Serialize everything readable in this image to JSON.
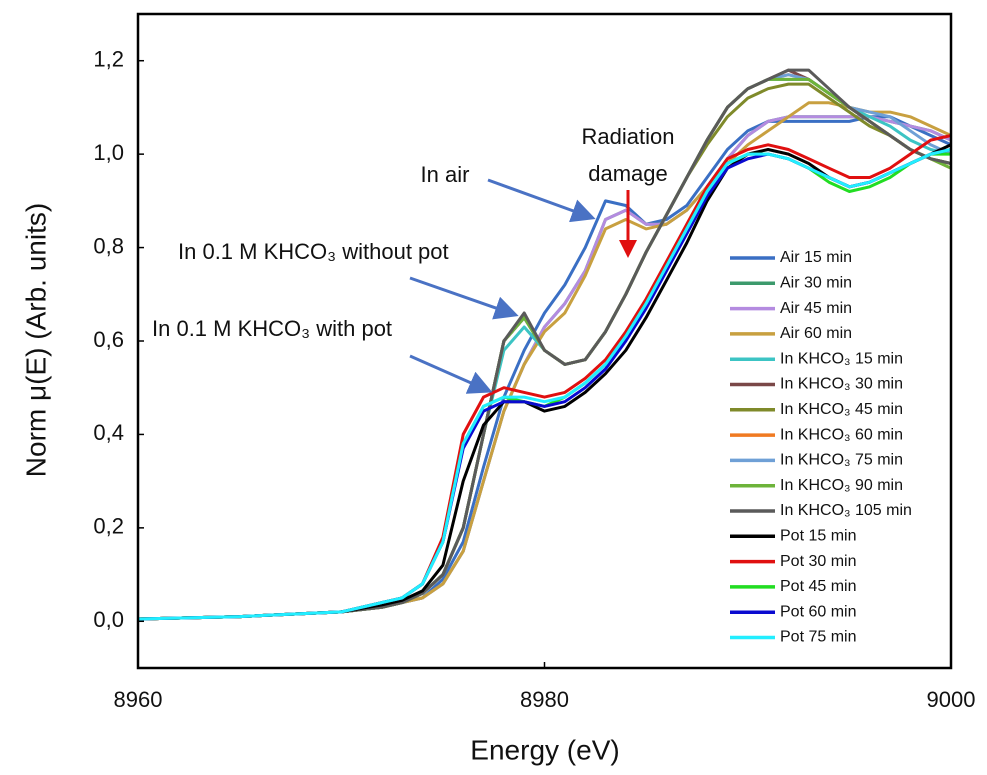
{
  "chart_data": {
    "type": "line",
    "xlabel": "Energy (eV)",
    "ylabel": "Norm μ(E) (Arb. units)",
    "annotations": [
      "In air",
      "Radiation",
      "damage",
      "In 0.1 M KHCO₃ without pot",
      "In 0.1 M KHCO₃ with pot"
    ],
    "xlim": [
      8960,
      9000
    ],
    "xticks": [
      8960,
      8980,
      9000
    ],
    "ylim": [
      -0.1,
      1.3
    ],
    "yticks": [
      {
        "value": 0,
        "label": "0,0"
      },
      {
        "value": 0.2,
        "label": "0,2"
      },
      {
        "value": 0.4,
        "label": "0,4"
      },
      {
        "value": 0.6,
        "label": "0,6"
      },
      {
        "value": 0.8,
        "label": "0,8"
      },
      {
        "value": 1.0,
        "label": "1,0"
      },
      {
        "value": 1.2,
        "label": "1,2"
      }
    ],
    "grid": false,
    "legend": "right",
    "x": [
      8960,
      8965,
      8970,
      8972,
      8973,
      8974,
      8975,
      8976,
      8977,
      8978,
      8979,
      8980,
      8981,
      8982,
      8983,
      8984,
      8985,
      8986,
      8987,
      8988,
      8989,
      8990,
      8991,
      8992,
      8993,
      8994,
      8995,
      8996,
      8997,
      8998,
      8999,
      9000
    ],
    "series": [
      {
        "name": "Air 15 min",
        "color": "#3a6fc4",
        "values": [
          0.005,
          0.01,
          0.02,
          0.03,
          0.04,
          0.05,
          0.09,
          0.17,
          0.33,
          0.48,
          0.58,
          0.66,
          0.72,
          0.8,
          0.9,
          0.89,
          0.85,
          0.86,
          0.89,
          0.95,
          1.01,
          1.05,
          1.07,
          1.07,
          1.07,
          1.07,
          1.07,
          1.08,
          1.08,
          1.06,
          1.04,
          1.02
        ]
      },
      {
        "name": "Air 30 min",
        "color": "#3c9a6c",
        "values": [
          0.005,
          0.01,
          0.02,
          0.03,
          0.04,
          0.05,
          0.08,
          0.15,
          0.3,
          0.45,
          0.55,
          0.63,
          0.68,
          0.75,
          0.86,
          0.88,
          0.85,
          0.85,
          0.88,
          0.93,
          0.99,
          1.04,
          1.07,
          1.08,
          1.08,
          1.08,
          1.08,
          1.08,
          1.07,
          1.06,
          1.05,
          1.03
        ]
      },
      {
        "name": "Air 45 min",
        "color": "#b48be0",
        "values": [
          0.005,
          0.01,
          0.02,
          0.03,
          0.04,
          0.05,
          0.08,
          0.15,
          0.3,
          0.45,
          0.55,
          0.63,
          0.68,
          0.75,
          0.86,
          0.88,
          0.85,
          0.85,
          0.88,
          0.93,
          0.99,
          1.04,
          1.07,
          1.08,
          1.08,
          1.08,
          1.08,
          1.08,
          1.07,
          1.06,
          1.05,
          1.03
        ]
      },
      {
        "name": "Air 60 min",
        "color": "#c8a040",
        "values": [
          0.005,
          0.01,
          0.02,
          0.03,
          0.04,
          0.05,
          0.08,
          0.15,
          0.3,
          0.45,
          0.55,
          0.62,
          0.66,
          0.74,
          0.84,
          0.86,
          0.84,
          0.85,
          0.88,
          0.93,
          0.98,
          1.02,
          1.05,
          1.08,
          1.11,
          1.11,
          1.1,
          1.09,
          1.09,
          1.08,
          1.06,
          1.04
        ]
      },
      {
        "name": "In KHCO₃ 15 min",
        "color": "#3cc4c4",
        "values": [
          0.005,
          0.01,
          0.02,
          0.03,
          0.04,
          0.06,
          0.1,
          0.2,
          0.4,
          0.58,
          0.63,
          0.58,
          0.55,
          0.56,
          0.62,
          0.7,
          0.79,
          0.87,
          0.95,
          1.03,
          1.1,
          1.14,
          1.16,
          1.16,
          1.16,
          1.13,
          1.1,
          1.08,
          1.06,
          1.03,
          1.01,
          1.0
        ]
      },
      {
        "name": "In KHCO₃ 30 min",
        "color": "#7a4848",
        "values": [
          0.005,
          0.01,
          0.02,
          0.03,
          0.04,
          0.06,
          0.1,
          0.2,
          0.4,
          0.6,
          0.65,
          0.58,
          0.55,
          0.56,
          0.62,
          0.7,
          0.79,
          0.87,
          0.95,
          1.03,
          1.1,
          1.14,
          1.16,
          1.18,
          1.16,
          1.13,
          1.1,
          1.07,
          1.04,
          1.01,
          0.99,
          0.98
        ]
      },
      {
        "name": "In KHCO₃ 45 min",
        "color": "#7f8a2a",
        "values": [
          0.005,
          0.01,
          0.02,
          0.03,
          0.04,
          0.06,
          0.1,
          0.2,
          0.4,
          0.6,
          0.65,
          0.58,
          0.55,
          0.56,
          0.62,
          0.7,
          0.79,
          0.87,
          0.95,
          1.02,
          1.08,
          1.12,
          1.14,
          1.15,
          1.15,
          1.12,
          1.09,
          1.06,
          1.04,
          1.01,
          0.99,
          0.98
        ]
      },
      {
        "name": "In KHCO₃ 60 min",
        "color": "#f07a22",
        "values": [
          0.005,
          0.01,
          0.02,
          0.03,
          0.04,
          0.06,
          0.1,
          0.2,
          0.4,
          0.6,
          0.65,
          0.58,
          0.55,
          0.56,
          0.62,
          0.7,
          0.79,
          0.87,
          0.95,
          1.03,
          1.1,
          1.14,
          1.16,
          1.17,
          1.16,
          1.13,
          1.1,
          1.07,
          1.04,
          1.01,
          0.99,
          0.97
        ]
      },
      {
        "name": "In KHCO₃ 75 min",
        "color": "#6fa0d6",
        "values": [
          0.005,
          0.01,
          0.02,
          0.03,
          0.04,
          0.06,
          0.1,
          0.2,
          0.4,
          0.6,
          0.65,
          0.58,
          0.55,
          0.56,
          0.62,
          0.7,
          0.79,
          0.87,
          0.95,
          1.03,
          1.1,
          1.14,
          1.16,
          1.17,
          1.16,
          1.13,
          1.1,
          1.09,
          1.08,
          1.05,
          1.02,
          1.0
        ]
      },
      {
        "name": "In KHCO₃ 90 min",
        "color": "#6db33a",
        "values": [
          0.005,
          0.01,
          0.02,
          0.03,
          0.04,
          0.06,
          0.1,
          0.2,
          0.4,
          0.6,
          0.65,
          0.58,
          0.55,
          0.56,
          0.62,
          0.7,
          0.79,
          0.87,
          0.95,
          1.03,
          1.1,
          1.14,
          1.16,
          1.16,
          1.16,
          1.13,
          1.1,
          1.07,
          1.04,
          1.01,
          0.99,
          0.97
        ]
      },
      {
        "name": "In KHCO₃ 105 min",
        "color": "#5a5a5a",
        "values": [
          0.005,
          0.01,
          0.02,
          0.03,
          0.04,
          0.06,
          0.1,
          0.2,
          0.4,
          0.6,
          0.66,
          0.58,
          0.55,
          0.56,
          0.62,
          0.7,
          0.79,
          0.87,
          0.95,
          1.03,
          1.1,
          1.14,
          1.16,
          1.18,
          1.18,
          1.14,
          1.1,
          1.07,
          1.04,
          1.01,
          0.99,
          0.98
        ]
      },
      {
        "name": "Pot 15 min",
        "color": "#000000",
        "values": [
          0.005,
          0.01,
          0.02,
          0.035,
          0.045,
          0.065,
          0.12,
          0.3,
          0.42,
          0.47,
          0.47,
          0.45,
          0.46,
          0.49,
          0.53,
          0.58,
          0.65,
          0.73,
          0.81,
          0.9,
          0.97,
          1.0,
          1.01,
          1.0,
          0.98,
          0.95,
          0.93,
          0.94,
          0.96,
          0.98,
          1.0,
          1.02
        ]
      },
      {
        "name": "Pot 30 min",
        "color": "#e01010",
        "values": [
          0.005,
          0.01,
          0.02,
          0.04,
          0.05,
          0.08,
          0.18,
          0.4,
          0.48,
          0.5,
          0.49,
          0.48,
          0.49,
          0.52,
          0.56,
          0.62,
          0.69,
          0.77,
          0.85,
          0.93,
          0.99,
          1.01,
          1.02,
          1.01,
          0.99,
          0.97,
          0.95,
          0.95,
          0.97,
          1.0,
          1.03,
          1.04
        ]
      },
      {
        "name": "Pot 45 min",
        "color": "#22dd22",
        "values": [
          0.005,
          0.01,
          0.02,
          0.04,
          0.05,
          0.08,
          0.17,
          0.38,
          0.46,
          0.48,
          0.47,
          0.46,
          0.48,
          0.51,
          0.55,
          0.61,
          0.68,
          0.76,
          0.84,
          0.92,
          0.98,
          1.0,
          1.0,
          0.99,
          0.97,
          0.94,
          0.92,
          0.93,
          0.95,
          0.98,
          1.0,
          1.0
        ]
      },
      {
        "name": "Pot 60 min",
        "color": "#0a0ad0",
        "values": [
          0.005,
          0.01,
          0.02,
          0.04,
          0.05,
          0.08,
          0.17,
          0.37,
          0.45,
          0.47,
          0.47,
          0.46,
          0.47,
          0.5,
          0.54,
          0.6,
          0.67,
          0.75,
          0.83,
          0.91,
          0.97,
          0.99,
          1.0,
          0.99,
          0.97,
          0.95,
          0.93,
          0.94,
          0.96,
          0.98,
          1.0,
          1.01
        ]
      },
      {
        "name": "Pot 75 min",
        "color": "#22eeff",
        "values": [
          0.005,
          0.01,
          0.02,
          0.04,
          0.05,
          0.08,
          0.17,
          0.38,
          0.46,
          0.48,
          0.48,
          0.47,
          0.48,
          0.51,
          0.55,
          0.61,
          0.68,
          0.76,
          0.84,
          0.92,
          0.98,
          1.0,
          1.0,
          0.99,
          0.97,
          0.95,
          0.93,
          0.94,
          0.96,
          0.98,
          1.0,
          1.01
        ]
      }
    ]
  }
}
